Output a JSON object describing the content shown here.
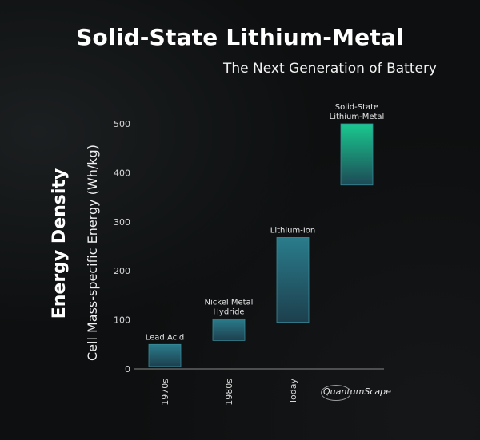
{
  "title": "Solid-State Lithium-Metal",
  "subtitle": "The Next Generation of Battery",
  "logo_text": "QuantumScape",
  "chart_data": {
    "type": "bar",
    "title": "Energy Density",
    "ylabel": "Cell Mass-specific Energy (Wh/kg)",
    "xlabel": "",
    "ylim": [
      0,
      500
    ],
    "yticks": [
      0,
      100,
      200,
      300,
      400,
      500
    ],
    "grid": false,
    "categories": [
      "1970s",
      "1980s",
      "Today",
      ""
    ],
    "series": [
      {
        "ranges": [
          [
            5,
            50
          ],
          [
            58,
            102
          ],
          [
            95,
            268
          ],
          [
            375,
            500
          ]
        ],
        "labels": [
          [
            "Lead Acid"
          ],
          [
            "Nickel Metal",
            "Hydride"
          ],
          [
            "Lithium-Ion"
          ],
          [
            "Solid-State",
            "Lithium-Metal"
          ]
        ]
      }
    ],
    "colors": {
      "bar_top": "#2a7c8c",
      "bar_bottom": "#1d3f4d",
      "highlight_top": "#19c98f",
      "highlight_bottom": "#1d4a56",
      "border": "#3a8a9a"
    }
  }
}
